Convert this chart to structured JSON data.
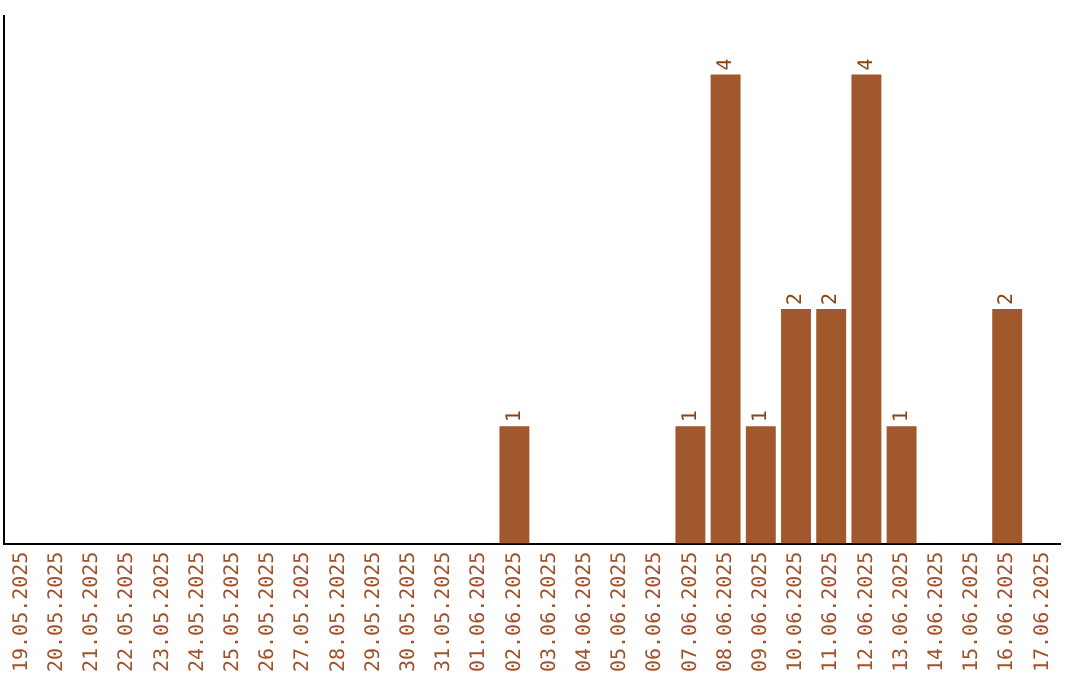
{
  "chart_data": {
    "type": "bar",
    "categories": [
      "19.05.2025",
      "20.05.2025",
      "21.05.2025",
      "22.05.2025",
      "23.05.2025",
      "24.05.2025",
      "25.05.2025",
      "26.05.2025",
      "27.05.2025",
      "28.05.2025",
      "29.05.2025",
      "30.05.2025",
      "31.05.2025",
      "01.06.2025",
      "02.06.2025",
      "03.06.2025",
      "04.06.2025",
      "05.06.2025",
      "06.06.2025",
      "07.06.2025",
      "08.06.2025",
      "09.06.2025",
      "10.06.2025",
      "11.06.2025",
      "12.06.2025",
      "13.06.2025",
      "14.06.2025",
      "15.06.2025",
      "16.06.2025",
      "17.06.2025"
    ],
    "values": [
      null,
      null,
      null,
      null,
      null,
      null,
      null,
      null,
      null,
      null,
      null,
      null,
      null,
      null,
      1,
      null,
      null,
      null,
      null,
      1,
      4,
      1,
      2,
      2,
      4,
      1,
      null,
      null,
      2,
      null
    ],
    "data_labels": true,
    "color": "#a0582c",
    "grid": false,
    "legend": false
  }
}
